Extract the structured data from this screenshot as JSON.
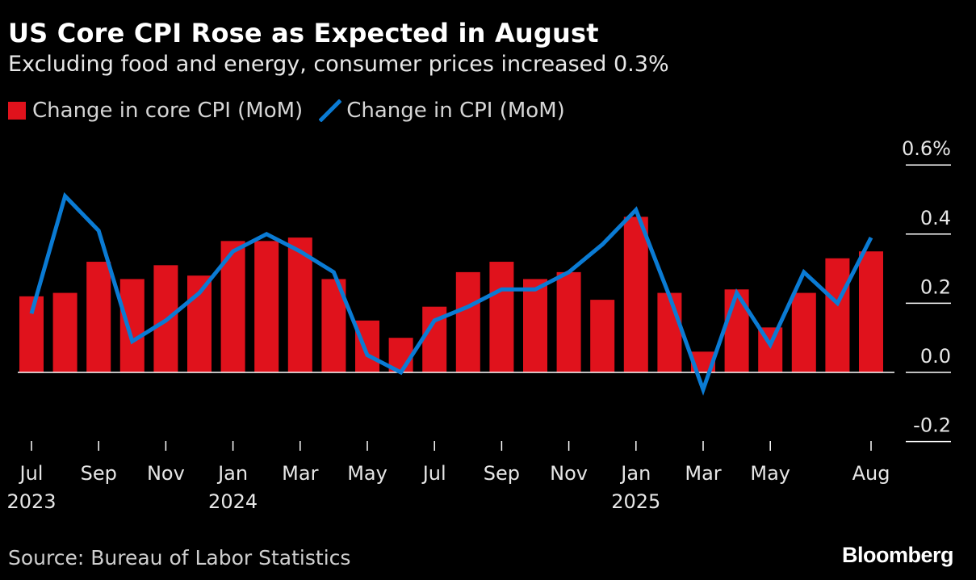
{
  "header": {
    "title": "US Core CPI Rose as Expected in August",
    "subtitle": "Excluding food and energy, consumer prices increased 0.3%"
  },
  "footer": {
    "source": "Source: Bureau of Labor Statistics",
    "brand": "Bloomberg"
  },
  "colors": {
    "bar": "#e0121c",
    "line": "#0a7bd4",
    "background": "#000000",
    "text": "#ffffff"
  },
  "chart_data": {
    "type": "bar",
    "title": "US Core CPI Rose as Expected in August",
    "subtitle": "Excluding food and energy, consumer prices increased 0.3%",
    "legend_position": "top-left",
    "grid": false,
    "categories": [
      "2023-07",
      "2023-08",
      "2023-09",
      "2023-10",
      "2023-11",
      "2023-12",
      "2024-01",
      "2024-02",
      "2024-03",
      "2024-04",
      "2024-05",
      "2024-06",
      "2024-07",
      "2024-08",
      "2024-09",
      "2024-10",
      "2024-11",
      "2024-12",
      "2025-01",
      "2025-02",
      "2025-03",
      "2025-04",
      "2025-05",
      "2025-06",
      "2025-07",
      "2025-08"
    ],
    "series": [
      {
        "name": "Change in core CPI (MoM)",
        "type": "bar",
        "values": [
          0.22,
          0.23,
          0.32,
          0.27,
          0.31,
          0.28,
          0.38,
          0.38,
          0.39,
          0.27,
          0.15,
          0.1,
          0.19,
          0.29,
          0.32,
          0.27,
          0.29,
          0.21,
          0.45,
          0.23,
          0.06,
          0.24,
          0.13,
          0.23,
          0.33,
          0.35
        ]
      },
      {
        "name": "Change in CPI (MoM)",
        "type": "line",
        "values": [
          0.17,
          0.51,
          0.41,
          0.09,
          0.15,
          0.23,
          0.35,
          0.4,
          0.35,
          0.29,
          0.05,
          0.0,
          0.15,
          0.19,
          0.24,
          0.24,
          0.29,
          0.37,
          0.47,
          0.22,
          -0.05,
          0.23,
          0.08,
          0.29,
          0.2,
          0.39
        ]
      }
    ],
    "x_ticks": [
      {
        "label": "Jul",
        "year": "2023"
      },
      {
        "label": "Sep",
        "year": ""
      },
      {
        "label": "Nov",
        "year": ""
      },
      {
        "label": "Jan",
        "year": "2024"
      },
      {
        "label": "Mar",
        "year": ""
      },
      {
        "label": "May",
        "year": ""
      },
      {
        "label": "Jul",
        "year": ""
      },
      {
        "label": "Sep",
        "year": ""
      },
      {
        "label": "Nov",
        "year": ""
      },
      {
        "label": "Jan",
        "year": "2025"
      },
      {
        "label": "Mar",
        "year": ""
      },
      {
        "label": "May",
        "year": ""
      },
      {
        "label": "Aug",
        "year": ""
      }
    ],
    "x_tick_index": [
      0,
      2,
      4,
      6,
      8,
      10,
      12,
      14,
      16,
      18,
      20,
      22,
      25
    ],
    "y_ticks": [
      "0.6%",
      "0.4",
      "0.2",
      "0.0",
      "-0.2"
    ],
    "y_tick_values": [
      0.6,
      0.4,
      0.2,
      0.0,
      -0.2
    ],
    "ylim": [
      -0.2,
      0.6
    ]
  }
}
